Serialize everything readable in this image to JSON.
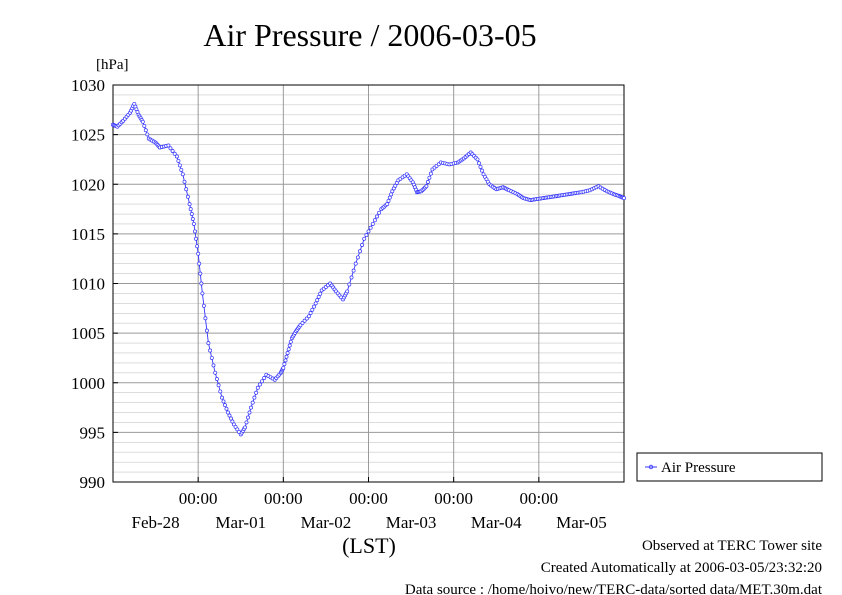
{
  "chart_data": {
    "type": "line",
    "title": "Air Pressure / 2006-03-05",
    "ylabel_unit": "[hPa]",
    "xlabel": "(LST)",
    "ylim": [
      990,
      1030
    ],
    "yticks": [
      990,
      995,
      1000,
      1005,
      1010,
      1015,
      1020,
      1025,
      1030
    ],
    "xlim": [
      0.0,
      6.0
    ],
    "xtick_positions": [
      1.0,
      2.0,
      3.0,
      4.0,
      5.0
    ],
    "xtick_time_labels": [
      "00:00",
      "00:00",
      "00:00",
      "00:00",
      "00:00"
    ],
    "x_day_labels": [
      "Feb-28",
      "Mar-01",
      "Mar-02",
      "Mar-03",
      "Mar-04",
      "Mar-05"
    ],
    "x_day_label_positions": [
      0.5,
      1.5,
      2.5,
      3.5,
      4.5,
      5.5
    ],
    "grid": true,
    "legend_position": "right",
    "series": [
      {
        "name": "Air Pressure",
        "color": "#3333ff",
        "marker": "circle",
        "x": [
          0.0,
          0.05,
          0.12,
          0.2,
          0.25,
          0.3,
          0.35,
          0.42,
          0.5,
          0.55,
          0.65,
          0.75,
          0.82,
          0.9,
          0.95,
          1.0,
          1.05,
          1.12,
          1.2,
          1.28,
          1.35,
          1.42,
          1.5,
          1.55,
          1.62,
          1.7,
          1.8,
          1.9,
          1.97,
          2.0,
          2.05,
          2.1,
          2.15,
          2.2,
          2.3,
          2.38,
          2.45,
          2.55,
          2.62,
          2.7,
          2.75,
          2.85,
          2.95,
          3.05,
          3.15,
          3.22,
          3.28,
          3.35,
          3.45,
          3.52,
          3.57,
          3.62,
          3.68,
          3.75,
          3.85,
          3.95,
          4.05,
          4.12,
          4.2,
          4.28,
          4.35,
          4.42,
          4.5,
          4.58,
          4.65,
          4.75,
          4.82,
          4.9,
          4.97,
          5.05,
          5.12,
          5.2,
          5.27,
          5.35,
          5.42,
          5.5,
          5.6,
          5.7,
          5.8,
          5.88,
          5.95,
          6.0
        ],
        "y": [
          1026.0,
          1025.8,
          1026.4,
          1027.2,
          1028.1,
          1027.0,
          1026.3,
          1024.6,
          1024.2,
          1023.7,
          1023.9,
          1022.8,
          1021.0,
          1018.0,
          1016.0,
          1013.0,
          1009.0,
          1004.0,
          1001.0,
          998.5,
          997.0,
          995.8,
          994.8,
          995.5,
          997.5,
          999.5,
          1000.8,
          1000.3,
          1001.0,
          1001.5,
          1003.0,
          1004.5,
          1005.2,
          1005.8,
          1006.7,
          1008.0,
          1009.3,
          1010.0,
          1009.2,
          1008.4,
          1009.2,
          1012.0,
          1014.5,
          1016.0,
          1017.5,
          1018.0,
          1019.3,
          1020.4,
          1021.0,
          1020.2,
          1019.2,
          1019.3,
          1019.8,
          1021.5,
          1022.2,
          1022.0,
          1022.2,
          1022.6,
          1023.2,
          1022.5,
          1021.0,
          1020.0,
          1019.5,
          1019.7,
          1019.4,
          1019.0,
          1018.6,
          1018.4,
          1018.5,
          1018.6,
          1018.7,
          1018.8,
          1018.9,
          1019.0,
          1019.1,
          1019.2,
          1019.4,
          1019.8,
          1019.3,
          1019.0,
          1018.8,
          1018.6
        ]
      }
    ]
  },
  "footer": {
    "observed": "Observed at TERC Tower site",
    "created": "Created Automatically at 2006-03-05/23:32:20",
    "source": "Data source : /home/hoivo/new/TERC-data/sorted  data/MET.30m.dat"
  }
}
